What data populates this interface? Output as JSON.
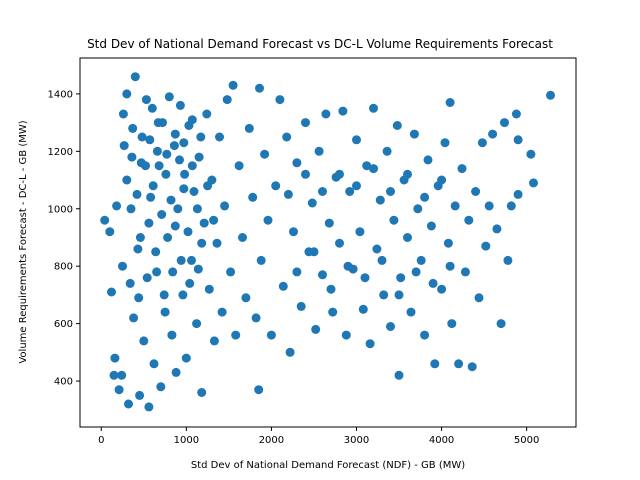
{
  "chart_data": {
    "type": "scatter",
    "title": "Std Dev of National Demand Forecast vs DC-L Volume Requirements Forecast",
    "xlabel": "Std Dev of National Demand Forecast (NDF) - GB (MW)",
    "ylabel": "Volume Requirements Forecast - DC-L - GB (MW)",
    "xlim": [
      -250,
      5580
    ],
    "ylim": [
      240,
      1525
    ],
    "xticks": [
      0,
      1000,
      2000,
      3000,
      4000,
      5000
    ],
    "yticks": [
      400,
      600,
      800,
      1000,
      1200,
      1400
    ],
    "grid": false,
    "color": "#1f77b4",
    "points": [
      [
        40,
        960
      ],
      [
        100,
        920
      ],
      [
        120,
        710
      ],
      [
        150,
        420
      ],
      [
        160,
        480
      ],
      [
        180,
        1010
      ],
      [
        210,
        370
      ],
      [
        240,
        420
      ],
      [
        260,
        1330
      ],
      [
        300,
        1400
      ],
      [
        320,
        320
      ],
      [
        360,
        1180
      ],
      [
        380,
        620
      ],
      [
        400,
        1460
      ],
      [
        430,
        860
      ],
      [
        450,
        350
      ],
      [
        480,
        1250
      ],
      [
        500,
        540
      ],
      [
        530,
        1380
      ],
      [
        560,
        310
      ],
      [
        580,
        1040
      ],
      [
        600,
        1350
      ],
      [
        620,
        460
      ],
      [
        650,
        780
      ],
      [
        680,
        1150
      ],
      [
        700,
        380
      ],
      [
        720,
        1300
      ],
      [
        750,
        640
      ],
      [
        780,
        900
      ],
      [
        800,
        1390
      ],
      [
        830,
        560
      ],
      [
        860,
        1220
      ],
      [
        880,
        430
      ],
      [
        900,
        1000
      ],
      [
        930,
        1360
      ],
      [
        960,
        700
      ],
      [
        980,
        1120
      ],
      [
        1000,
        480
      ],
      [
        1030,
        1290
      ],
      [
        1060,
        820
      ],
      [
        1090,
        1060
      ],
      [
        1120,
        600
      ],
      [
        1150,
        1180
      ],
      [
        1180,
        360
      ],
      [
        1210,
        950
      ],
      [
        1240,
        1330
      ],
      [
        1270,
        720
      ],
      [
        1300,
        1100
      ],
      [
        1330,
        540
      ],
      [
        1360,
        880
      ],
      [
        1390,
        1250
      ],
      [
        1420,
        640
      ],
      [
        1450,
        1010
      ],
      [
        1480,
        1380
      ],
      [
        1520,
        780
      ],
      [
        1550,
        1430
      ],
      [
        1580,
        560
      ],
      [
        1620,
        1150
      ],
      [
        1660,
        900
      ],
      [
        1700,
        690
      ],
      [
        1740,
        1280
      ],
      [
        1780,
        1040
      ],
      [
        1820,
        620
      ],
      [
        1850,
        370
      ],
      [
        1860,
        1420
      ],
      [
        1880,
        820
      ],
      [
        1920,
        1190
      ],
      [
        1960,
        960
      ],
      [
        2000,
        560
      ],
      [
        2050,
        1080
      ],
      [
        2100,
        1380
      ],
      [
        2140,
        730
      ],
      [
        2180,
        1250
      ],
      [
        2220,
        500
      ],
      [
        2260,
        920
      ],
      [
        2300,
        1160
      ],
      [
        2350,
        660
      ],
      [
        2400,
        1300
      ],
      [
        2440,
        850
      ],
      [
        2480,
        1020
      ],
      [
        2520,
        580
      ],
      [
        2560,
        1200
      ],
      [
        2600,
        770
      ],
      [
        2640,
        1330
      ],
      [
        2680,
        950
      ],
      [
        2720,
        640
      ],
      [
        2760,
        1110
      ],
      [
        2800,
        880
      ],
      [
        2840,
        1340
      ],
      [
        2880,
        560
      ],
      [
        2920,
        1060
      ],
      [
        2960,
        790
      ],
      [
        3000,
        1240
      ],
      [
        3040,
        920
      ],
      [
        3080,
        650
      ],
      [
        3120,
        1150
      ],
      [
        3160,
        530
      ],
      [
        3200,
        1350
      ],
      [
        3240,
        860
      ],
      [
        3280,
        1030
      ],
      [
        3320,
        700
      ],
      [
        3360,
        1200
      ],
      [
        3400,
        590
      ],
      [
        3440,
        960
      ],
      [
        3480,
        1290
      ],
      [
        3500,
        420
      ],
      [
        3520,
        760
      ],
      [
        3560,
        1100
      ],
      [
        3600,
        900
      ],
      [
        3640,
        640
      ],
      [
        3680,
        1260
      ],
      [
        3720,
        1000
      ],
      [
        3760,
        820
      ],
      [
        3800,
        560
      ],
      [
        3840,
        1170
      ],
      [
        3880,
        940
      ],
      [
        3920,
        460
      ],
      [
        3960,
        1080
      ],
      [
        4000,
        720
      ],
      [
        4040,
        1230
      ],
      [
        4080,
        880
      ],
      [
        4100,
        1370
      ],
      [
        4120,
        600
      ],
      [
        4160,
        1010
      ],
      [
        4200,
        460
      ],
      [
        4240,
        1140
      ],
      [
        4280,
        780
      ],
      [
        4320,
        960
      ],
      [
        4360,
        450
      ],
      [
        4400,
        1060
      ],
      [
        4440,
        690
      ],
      [
        4480,
        1230
      ],
      [
        4520,
        870
      ],
      [
        4560,
        1010
      ],
      [
        4600,
        1260
      ],
      [
        4650,
        930
      ],
      [
        4700,
        600
      ],
      [
        4740,
        1300
      ],
      [
        4780,
        820
      ],
      [
        4820,
        1010
      ],
      [
        4880,
        1330
      ],
      [
        4900,
        1240
      ],
      [
        4900,
        1050
      ],
      [
        5050,
        1190
      ],
      [
        5080,
        1090
      ],
      [
        5280,
        1395
      ],
      [
        300,
        1100
      ],
      [
        350,
        1000
      ],
      [
        420,
        1050
      ],
      [
        460,
        900
      ],
      [
        520,
        1150
      ],
      [
        560,
        950
      ],
      [
        610,
        1080
      ],
      [
        660,
        1200
      ],
      [
        710,
        980
      ],
      [
        760,
        1120
      ],
      [
        820,
        1030
      ],
      [
        870,
        940
      ],
      [
        920,
        1170
      ],
      [
        970,
        1070
      ],
      [
        1020,
        920
      ],
      [
        1070,
        1150
      ],
      [
        1130,
        1000
      ],
      [
        1180,
        880
      ],
      [
        1250,
        1080
      ],
      [
        1320,
        960
      ],
      [
        250,
        800
      ],
      [
        340,
        740
      ],
      [
        440,
        690
      ],
      [
        540,
        760
      ],
      [
        640,
        850
      ],
      [
        740,
        700
      ],
      [
        840,
        780
      ],
      [
        940,
        820
      ],
      [
        1040,
        740
      ],
      [
        1140,
        790
      ],
      [
        270,
        1220
      ],
      [
        370,
        1280
      ],
      [
        470,
        1160
      ],
      [
        570,
        1240
      ],
      [
        670,
        1300
      ],
      [
        770,
        1190
      ],
      [
        870,
        1260
      ],
      [
        970,
        1230
      ],
      [
        1070,
        1310
      ],
      [
        1170,
        1250
      ],
      [
        2200,
        1050
      ],
      [
        2400,
        1120
      ],
      [
        2600,
        1060
      ],
      [
        2800,
        1120
      ],
      [
        3000,
        1080
      ],
      [
        3200,
        1140
      ],
      [
        3400,
        1060
      ],
      [
        3600,
        1120
      ],
      [
        3800,
        1040
      ],
      [
        4000,
        1100
      ],
      [
        2300,
        780
      ],
      [
        2500,
        850
      ],
      [
        2700,
        720
      ],
      [
        2900,
        800
      ],
      [
        3100,
        760
      ],
      [
        3300,
        820
      ],
      [
        3500,
        700
      ],
      [
        3700,
        780
      ],
      [
        3900,
        740
      ],
      [
        4100,
        800
      ]
    ]
  }
}
